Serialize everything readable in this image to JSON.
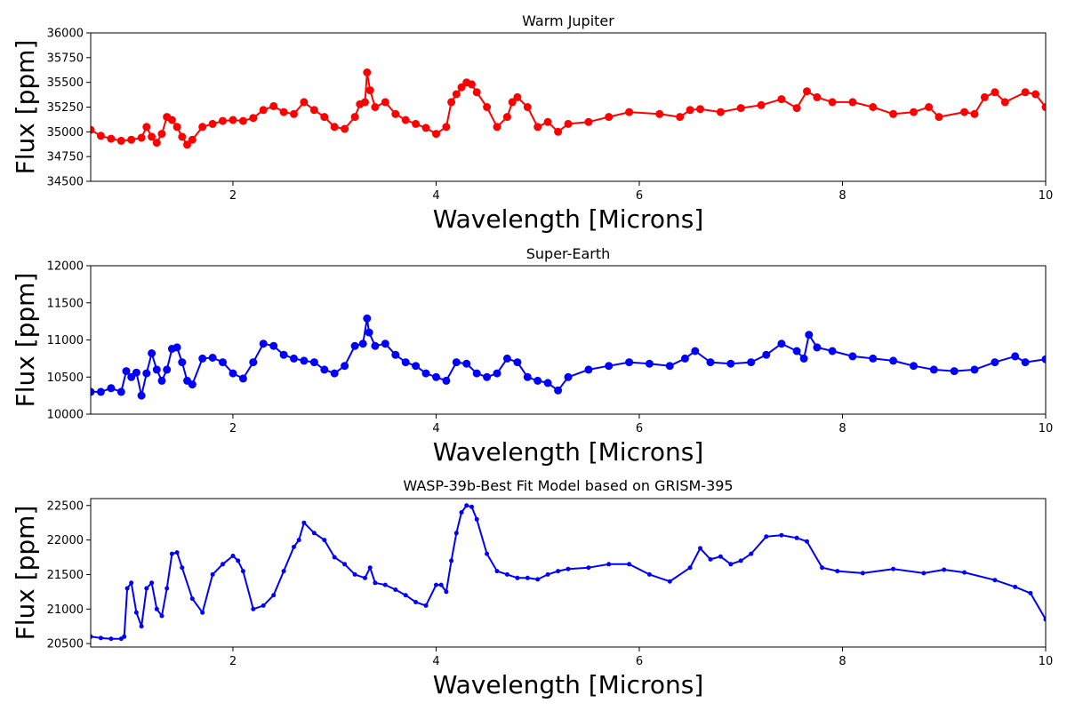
{
  "chart_data": [
    {
      "type": "line",
      "title": "Warm Jupiter",
      "xlabel": "Wavelength [Microns]",
      "ylabel": "Flux [ppm]",
      "xlim": [
        0.6,
        10
      ],
      "ylim": [
        34500,
        36000
      ],
      "xticks": [
        2,
        4,
        6,
        8,
        10
      ],
      "yticks": [
        34500,
        34750,
        35000,
        35250,
        35500,
        35750,
        36000
      ],
      "series_color": "#ff0000",
      "marker": "large",
      "series": [
        {
          "name": "Warm Jupiter",
          "x": [
            0.6,
            0.7,
            0.8,
            0.9,
            1.0,
            1.1,
            1.15,
            1.2,
            1.25,
            1.3,
            1.35,
            1.4,
            1.45,
            1.5,
            1.55,
            1.6,
            1.7,
            1.8,
            1.9,
            2.0,
            2.1,
            2.2,
            2.3,
            2.4,
            2.5,
            2.6,
            2.7,
            2.8,
            2.9,
            3.0,
            3.1,
            3.2,
            3.25,
            3.3,
            3.32,
            3.35,
            3.4,
            3.5,
            3.6,
            3.7,
            3.8,
            3.9,
            4.0,
            4.1,
            4.15,
            4.2,
            4.25,
            4.3,
            4.35,
            4.4,
            4.5,
            4.6,
            4.7,
            4.75,
            4.8,
            4.9,
            5.0,
            5.1,
            5.2,
            5.3,
            5.5,
            5.7,
            5.9,
            6.2,
            6.4,
            6.5,
            6.6,
            6.8,
            7.0,
            7.2,
            7.4,
            7.55,
            7.65,
            7.75,
            7.9,
            8.1,
            8.3,
            8.5,
            8.7,
            8.85,
            8.95,
            9.2,
            9.3,
            9.4,
            9.5,
            9.6,
            9.8,
            9.9,
            10.0
          ],
          "y": [
            35020,
            34960,
            34930,
            34910,
            34920,
            34940,
            35050,
            34950,
            34890,
            34980,
            35150,
            35120,
            35050,
            34950,
            34870,
            34920,
            35050,
            35080,
            35110,
            35120,
            35110,
            35140,
            35220,
            35260,
            35200,
            35180,
            35300,
            35220,
            35150,
            35050,
            35030,
            35150,
            35280,
            35300,
            35600,
            35420,
            35250,
            35300,
            35180,
            35120,
            35080,
            35040,
            34980,
            35050,
            35300,
            35380,
            35450,
            35500,
            35480,
            35400,
            35250,
            35050,
            35150,
            35300,
            35350,
            35250,
            35050,
            35100,
            35000,
            35080,
            35100,
            35150,
            35200,
            35180,
            35150,
            35220,
            35230,
            35200,
            35240,
            35270,
            35330,
            35240,
            35410,
            35350,
            35300,
            35300,
            35250,
            35180,
            35200,
            35250,
            35150,
            35200,
            35180,
            35350,
            35400,
            35300,
            35400,
            35380,
            35250
          ]
        }
      ]
    },
    {
      "type": "line",
      "title": "Super-Earth",
      "xlabel": "Wavelength [Microns]",
      "ylabel": "Flux [ppm]",
      "xlim": [
        0.6,
        10
      ],
      "ylim": [
        10000,
        12000
      ],
      "xticks": [
        2,
        4,
        6,
        8,
        10
      ],
      "yticks": [
        10000,
        10500,
        11000,
        11500,
        12000
      ],
      "series_color": "#0000ff",
      "marker": "large",
      "series": [
        {
          "name": "Super-Earth",
          "x": [
            0.6,
            0.7,
            0.8,
            0.9,
            0.95,
            1.0,
            1.05,
            1.1,
            1.15,
            1.2,
            1.25,
            1.3,
            1.35,
            1.4,
            1.45,
            1.5,
            1.55,
            1.6,
            1.7,
            1.8,
            1.9,
            2.0,
            2.1,
            2.2,
            2.3,
            2.4,
            2.5,
            2.6,
            2.7,
            2.8,
            2.9,
            3.0,
            3.1,
            3.2,
            3.28,
            3.32,
            3.34,
            3.4,
            3.5,
            3.6,
            3.7,
            3.8,
            3.9,
            4.0,
            4.1,
            4.2,
            4.3,
            4.4,
            4.5,
            4.6,
            4.7,
            4.8,
            4.9,
            5.0,
            5.1,
            5.2,
            5.3,
            5.5,
            5.7,
            5.9,
            6.1,
            6.3,
            6.45,
            6.55,
            6.7,
            6.9,
            7.1,
            7.25,
            7.4,
            7.55,
            7.62,
            7.67,
            7.75,
            7.9,
            8.1,
            8.3,
            8.5,
            8.7,
            8.9,
            9.1,
            9.3,
            9.5,
            9.7,
            9.8,
            10.0
          ],
          "y": [
            10300,
            10300,
            10350,
            10300,
            10580,
            10500,
            10560,
            10250,
            10550,
            10820,
            10600,
            10450,
            10600,
            10880,
            10900,
            10700,
            10450,
            10400,
            10750,
            10760,
            10700,
            10550,
            10480,
            10700,
            10950,
            10920,
            10800,
            10750,
            10720,
            10700,
            10600,
            10550,
            10650,
            10920,
            10950,
            11290,
            11100,
            10920,
            10950,
            10800,
            10700,
            10650,
            10550,
            10500,
            10450,
            10700,
            10680,
            10550,
            10500,
            10550,
            10750,
            10700,
            10500,
            10450,
            10420,
            10320,
            10500,
            10600,
            10650,
            10700,
            10680,
            10650,
            10750,
            10850,
            10700,
            10680,
            10700,
            10800,
            10950,
            10850,
            10750,
            11070,
            10900,
            10850,
            10780,
            10750,
            10720,
            10650,
            10600,
            10580,
            10600,
            10700,
            10780,
            10700,
            10740
          ]
        }
      ]
    },
    {
      "type": "line",
      "title": "WASP-39b-Best Fit Model based on GRISM-395",
      "xlabel": "Wavelength [Microns]",
      "ylabel": "Flux [ppm]",
      "xlim": [
        0.6,
        10
      ],
      "ylim": [
        20450,
        22600
      ],
      "xticks": [
        2,
        4,
        6,
        8,
        10
      ],
      "yticks": [
        20500,
        21000,
        21500,
        22000,
        22500
      ],
      "series_color": "#0000ff",
      "marker": "small",
      "series": [
        {
          "name": "WASP-39b",
          "x": [
            0.6,
            0.7,
            0.8,
            0.9,
            0.93,
            0.96,
            1.0,
            1.05,
            1.1,
            1.15,
            1.2,
            1.25,
            1.3,
            1.35,
            1.4,
            1.45,
            1.5,
            1.6,
            1.7,
            1.8,
            1.9,
            2.0,
            2.05,
            2.1,
            2.2,
            2.3,
            2.4,
            2.5,
            2.6,
            2.65,
            2.7,
            2.8,
            2.9,
            3.0,
            3.1,
            3.2,
            3.3,
            3.35,
            3.4,
            3.5,
            3.6,
            3.7,
            3.8,
            3.9,
            4.0,
            4.05,
            4.1,
            4.15,
            4.2,
            4.25,
            4.3,
            4.35,
            4.4,
            4.5,
            4.6,
            4.7,
            4.8,
            4.9,
            5.0,
            5.1,
            5.2,
            5.3,
            5.5,
            5.7,
            5.9,
            6.1,
            6.3,
            6.5,
            6.6,
            6.7,
            6.8,
            6.9,
            7.0,
            7.1,
            7.25,
            7.4,
            7.55,
            7.65,
            7.8,
            7.95,
            8.2,
            8.5,
            8.8,
            9.0,
            9.2,
            9.5,
            9.7,
            9.85,
            10.0
          ],
          "y": [
            20600,
            20580,
            20570,
            20570,
            20600,
            21300,
            21380,
            20950,
            20750,
            21300,
            21380,
            21000,
            20900,
            21300,
            21800,
            21820,
            21600,
            21150,
            20950,
            21500,
            21650,
            21770,
            21700,
            21550,
            21000,
            21050,
            21200,
            21550,
            21900,
            22000,
            22250,
            22100,
            22000,
            21750,
            21650,
            21500,
            21450,
            21600,
            21380,
            21350,
            21280,
            21200,
            21100,
            21050,
            21350,
            21350,
            21250,
            21700,
            22100,
            22400,
            22500,
            22480,
            22300,
            21800,
            21550,
            21500,
            21450,
            21450,
            21430,
            21500,
            21550,
            21580,
            21600,
            21650,
            21650,
            21500,
            21400,
            21600,
            21880,
            21720,
            21760,
            21650,
            21700,
            21800,
            22050,
            22070,
            22030,
            21980,
            21600,
            21550,
            21520,
            21580,
            21520,
            21570,
            21530,
            21420,
            21320,
            21230,
            20850
          ]
        }
      ]
    }
  ]
}
